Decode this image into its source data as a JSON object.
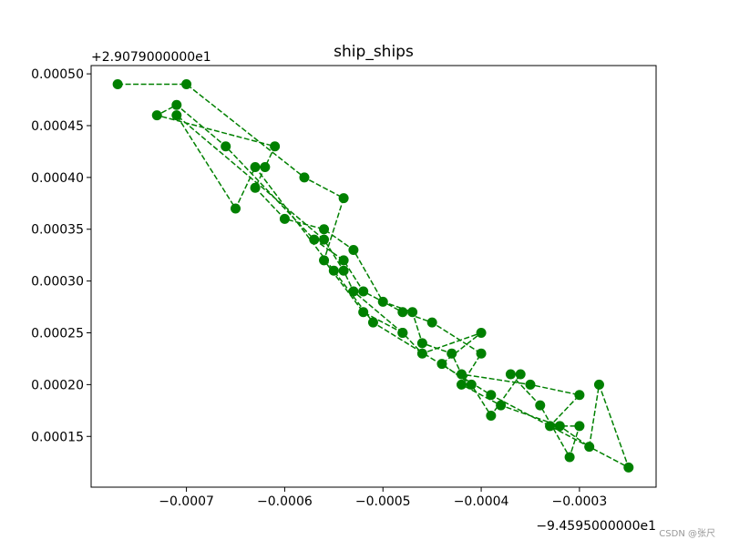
{
  "chart_data": {
    "type": "line",
    "title": "ship_ships",
    "x_offset_label": "−9.4595000000e1",
    "y_offset_label": "+2.9079000000e1",
    "watermark": "CSDN @张尺",
    "series": [
      {
        "color": "#008000",
        "linestyle": "dashed",
        "marker": "circle",
        "x": [
          -0.00077,
          -0.0007,
          -0.00058,
          -0.00054,
          -0.00056,
          -0.00052,
          -0.00048,
          -0.00046,
          -0.0004,
          -0.00044,
          -0.00041,
          -0.00039,
          -0.00036,
          -0.00037,
          -0.00034,
          -0.00031,
          -0.0003,
          -0.00033,
          -0.0003,
          -0.00035,
          -0.00042,
          -0.00043,
          -0.00046,
          -0.00047,
          -0.0005,
          -0.00053,
          -0.00056,
          -0.0006,
          -0.00063,
          -0.00062,
          -0.00061,
          -0.00073,
          -0.00071,
          -0.00066,
          -0.00057,
          -0.00054,
          -0.00052,
          -0.00048,
          -0.00045,
          -0.0004,
          -0.00042,
          -0.00038,
          -0.00032,
          -0.00029,
          -0.00028,
          -0.00025,
          -0.00039,
          -0.00051,
          -0.00055,
          -0.00063,
          -0.00065,
          -0.00071,
          -0.00056,
          -0.00054,
          -0.00053,
          -0.00048
        ],
        "values": [
          0.00049,
          0.00049,
          0.0004,
          0.00038,
          0.00032,
          0.00027,
          0.00025,
          0.00023,
          0.00025,
          0.00022,
          0.0002,
          0.00017,
          0.00021,
          0.00021,
          0.00018,
          0.00013,
          0.00016,
          0.00016,
          0.00019,
          0.0002,
          0.00021,
          0.00023,
          0.00024,
          0.00027,
          0.00028,
          0.00033,
          0.00035,
          0.00036,
          0.00039,
          0.00041,
          0.00043,
          0.00046,
          0.00047,
          0.00043,
          0.00034,
          0.00032,
          0.00029,
          0.00027,
          0.00026,
          0.00023,
          0.0002,
          0.00018,
          0.00016,
          0.00014,
          0.0002,
          0.00012,
          0.00019,
          0.00026,
          0.00031,
          0.00041,
          0.00037,
          0.00046,
          0.00034,
          0.00031,
          0.00029,
          0.00025
        ]
      }
    ],
    "xlim": [
      -0.000797,
      -0.000222
    ],
    "ylim": [
      0.000101,
      0.000508
    ],
    "xticks": [
      {
        "value": -0.0007,
        "label": "−0.0007"
      },
      {
        "value": -0.0006,
        "label": "−0.0006"
      },
      {
        "value": -0.0005,
        "label": "−0.0005"
      },
      {
        "value": -0.0004,
        "label": "−0.0004"
      },
      {
        "value": -0.0003,
        "label": "−0.0003"
      }
    ],
    "yticks": [
      0.00015,
      {
        "value": 0.0002,
        "label": "0.00020"
      },
      0.00025,
      {
        "value": 0.0003,
        "label": "0.00030"
      },
      0.00035,
      {
        "value": 0.0004,
        "label": "0.00040"
      },
      0.00045,
      {
        "value": 0.0005,
        "label": "0.00050"
      }
    ]
  }
}
